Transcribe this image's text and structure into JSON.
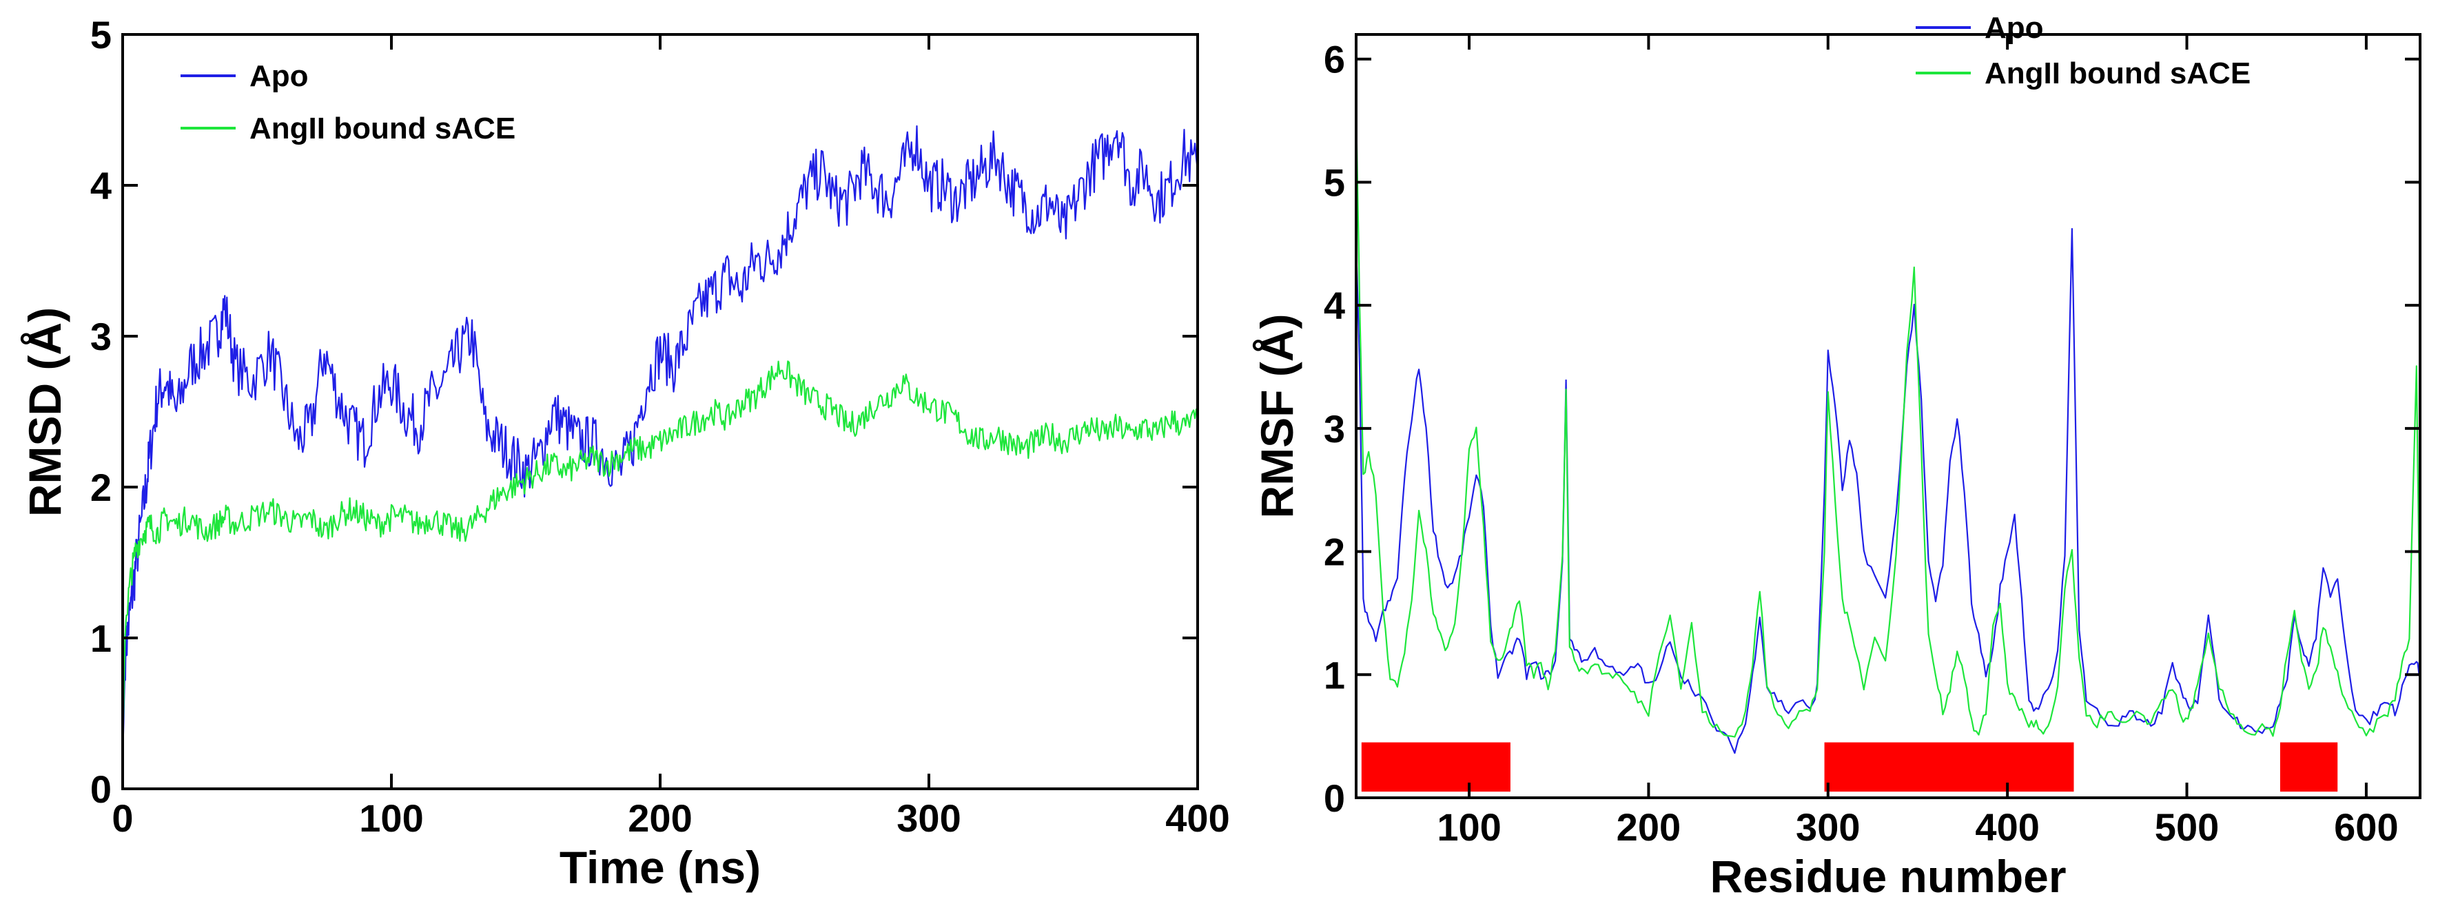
{
  "chart_data": [
    {
      "type": "line",
      "xlabel": "Time (ns)",
      "ylabel": "RMSD (Å)",
      "xlim": [
        0,
        400
      ],
      "ylim": [
        0,
        5
      ],
      "xticks": [
        "0",
        "100",
        "200",
        "300",
        "400"
      ],
      "yticks": [
        "0",
        "1",
        "2",
        "3",
        "4",
        "5"
      ],
      "legend_position": "top-left",
      "grid": false,
      "series": [
        {
          "name": "Apo",
          "color": "#1f1fe6",
          "x": [
            0,
            1,
            3,
            5,
            8,
            10,
            13,
            16,
            20,
            25,
            30,
            35,
            38,
            42,
            48,
            55,
            60,
            65,
            70,
            75,
            80,
            85,
            90,
            95,
            100,
            105,
            110,
            115,
            120,
            125,
            130,
            135,
            140,
            145,
            150,
            155,
            160,
            165,
            170,
            175,
            180,
            185,
            190,
            195,
            200,
            205,
            210,
            215,
            220,
            225,
            230,
            235,
            240,
            245,
            250,
            255,
            260,
            265,
            270,
            275,
            280,
            285,
            290,
            295,
            300,
            305,
            310,
            315,
            320,
            325,
            330,
            335,
            340,
            345,
            350,
            355,
            360,
            365,
            370,
            375,
            380,
            385,
            390,
            395,
            400
          ],
          "y": [
            0.2,
            0.9,
            1.2,
            1.5,
            1.9,
            2.2,
            2.6,
            2.7,
            2.5,
            2.8,
            2.9,
            3.0,
            3.2,
            2.8,
            2.7,
            2.9,
            2.6,
            2.3,
            2.4,
            2.9,
            2.6,
            2.4,
            2.3,
            2.6,
            2.7,
            2.5,
            2.4,
            2.6,
            2.7,
            2.9,
            3.0,
            2.4,
            2.3,
            2.2,
            2.1,
            2.2,
            2.5,
            2.4,
            2.3,
            2.3,
            2.2,
            2.1,
            2.3,
            2.7,
            2.9,
            2.8,
            3.0,
            3.2,
            3.3,
            3.4,
            3.3,
            3.5,
            3.5,
            3.6,
            3.8,
            4.0,
            4.1,
            3.9,
            3.9,
            4.1,
            4.0,
            3.9,
            4.1,
            4.3,
            4.0,
            4.0,
            3.9,
            4.0,
            4.1,
            4.2,
            4.0,
            3.9,
            3.8,
            3.9,
            3.7,
            3.9,
            4.1,
            4.2,
            4.4,
            4.0,
            4.1,
            3.9,
            4.0,
            4.2,
            4.1
          ]
        },
        {
          "name": "AngII bound sACE",
          "color": "#1ee63c",
          "x": [
            0,
            1,
            3,
            5,
            8,
            10,
            13,
            16,
            20,
            25,
            30,
            35,
            38,
            42,
            48,
            55,
            60,
            65,
            70,
            75,
            80,
            85,
            90,
            95,
            100,
            105,
            110,
            115,
            120,
            125,
            130,
            135,
            140,
            145,
            150,
            155,
            160,
            165,
            170,
            175,
            180,
            185,
            190,
            195,
            200,
            205,
            210,
            215,
            220,
            225,
            230,
            235,
            240,
            245,
            250,
            255,
            260,
            265,
            270,
            275,
            280,
            285,
            290,
            295,
            300,
            305,
            310,
            315,
            320,
            325,
            330,
            335,
            340,
            345,
            350,
            355,
            360,
            365,
            370,
            375,
            380,
            385,
            390,
            395,
            400
          ],
          "y": [
            0.25,
            1.1,
            1.4,
            1.6,
            1.7,
            1.75,
            1.7,
            1.8,
            1.75,
            1.8,
            1.7,
            1.75,
            1.8,
            1.75,
            1.8,
            1.85,
            1.8,
            1.75,
            1.8,
            1.7,
            1.8,
            1.85,
            1.8,
            1.75,
            1.8,
            1.8,
            1.75,
            1.8,
            1.75,
            1.7,
            1.75,
            1.85,
            1.95,
            2.0,
            2.05,
            2.1,
            2.15,
            2.1,
            2.15,
            2.2,
            2.15,
            2.2,
            2.25,
            2.25,
            2.3,
            2.35,
            2.4,
            2.45,
            2.5,
            2.45,
            2.55,
            2.6,
            2.7,
            2.8,
            2.7,
            2.6,
            2.55,
            2.5,
            2.4,
            2.45,
            2.55,
            2.6,
            2.7,
            2.6,
            2.55,
            2.5,
            2.45,
            2.35,
            2.3,
            2.35,
            2.3,
            2.25,
            2.3,
            2.35,
            2.3,
            2.35,
            2.4,
            2.35,
            2.4,
            2.35,
            2.4,
            2.35,
            2.45,
            2.4,
            2.45
          ]
        }
      ]
    },
    {
      "type": "line",
      "xlabel": "Residue number",
      "ylabel": "RMSF (Å)",
      "xlim": [
        37,
        630
      ],
      "ylim": [
        0,
        6.2
      ],
      "xticks": [
        "100",
        "200",
        "300",
        "400",
        "500",
        "600"
      ],
      "yticks": [
        "0",
        "1",
        "2",
        "3",
        "4",
        "5",
        "6"
      ],
      "legend_position": "top-center",
      "grid": false,
      "domain_bars": [
        {
          "start": 40,
          "end": 123,
          "color": "#ff0000"
        },
        {
          "start": 298,
          "end": 437,
          "color": "#ff0000"
        },
        {
          "start": 552,
          "end": 584,
          "color": "#ff0000"
        }
      ],
      "series": [
        {
          "name": "Apo",
          "color": "#1f1fe6",
          "x": [
            37,
            39,
            41,
            44,
            48,
            52,
            56,
            60,
            64,
            68,
            72,
            76,
            80,
            84,
            88,
            92,
            96,
            100,
            104,
            108,
            112,
            116,
            120,
            124,
            128,
            132,
            136,
            140,
            144,
            148,
            152,
            154,
            156,
            160,
            164,
            170,
            176,
            182,
            188,
            194,
            200,
            206,
            212,
            218,
            224,
            230,
            236,
            242,
            248,
            254,
            258,
            262,
            266,
            272,
            278,
            284,
            290,
            294,
            298,
            300,
            304,
            308,
            312,
            316,
            320,
            326,
            332,
            338,
            344,
            348,
            352,
            356,
            360,
            364,
            368,
            372,
            376,
            380,
            384,
            388,
            392,
            396,
            400,
            404,
            408,
            412,
            416,
            420,
            424,
            428,
            432,
            436,
            440,
            444,
            450,
            456,
            462,
            468,
            474,
            480,
            486,
            492,
            498,
            502,
            506,
            512,
            518,
            524,
            530,
            536,
            542,
            548,
            552,
            556,
            560,
            564,
            568,
            572,
            576,
            580,
            584,
            588,
            594,
            600,
            606,
            612,
            616,
            620,
            624,
            628,
            630
          ],
          "y": [
            4.5,
            3.5,
            1.6,
            1.4,
            1.3,
            1.5,
            1.6,
            1.8,
            2.6,
            3.1,
            3.5,
            3.0,
            2.2,
            1.9,
            1.7,
            1.8,
            2.0,
            2.3,
            2.6,
            2.4,
            1.4,
            1.0,
            1.1,
            1.2,
            1.3,
            1.0,
            1.1,
            1.0,
            1.0,
            1.1,
            1.9,
            3.4,
            1.3,
            1.2,
            1.1,
            1.2,
            1.1,
            1.0,
            1.0,
            1.1,
            0.9,
            1.0,
            1.3,
            1.0,
            0.9,
            0.8,
            0.6,
            0.5,
            0.4,
            0.6,
            1.0,
            1.5,
            0.9,
            0.8,
            0.7,
            0.8,
            0.7,
            0.9,
            2.5,
            3.6,
            3.2,
            2.5,
            2.9,
            2.6,
            2.0,
            1.8,
            1.6,
            2.3,
            3.5,
            4.0,
            3.2,
            1.9,
            1.6,
            1.9,
            2.7,
            3.1,
            2.5,
            1.6,
            1.3,
            1.0,
            1.2,
            1.7,
            2.0,
            2.3,
            1.6,
            0.8,
            0.7,
            0.8,
            0.9,
            1.2,
            2.0,
            4.6,
            1.4,
            0.8,
            0.7,
            0.6,
            0.6,
            0.7,
            0.6,
            0.6,
            0.7,
            1.1,
            0.8,
            0.7,
            0.8,
            1.5,
            0.8,
            0.7,
            0.6,
            0.6,
            0.5,
            0.6,
            0.8,
            1.0,
            1.5,
            1.2,
            1.1,
            1.3,
            1.9,
            1.6,
            1.8,
            1.3,
            0.7,
            0.6,
            0.7,
            0.8,
            0.7,
            0.9,
            1.1,
            1.1,
            1.0
          ],
          "name_dup_guard": ""
        },
        {
          "name": "AngII bound sACE",
          "color": "#1ee63c",
          "x": [
            37,
            39,
            41,
            44,
            48,
            52,
            56,
            60,
            64,
            68,
            72,
            76,
            80,
            84,
            88,
            92,
            96,
            100,
            104,
            108,
            112,
            116,
            120,
            124,
            128,
            132,
            136,
            140,
            144,
            148,
            152,
            154,
            156,
            160,
            164,
            170,
            176,
            182,
            188,
            194,
            200,
            206,
            212,
            218,
            224,
            230,
            236,
            242,
            248,
            254,
            258,
            262,
            266,
            272,
            278,
            284,
            290,
            294,
            298,
            300,
            304,
            308,
            312,
            316,
            320,
            326,
            332,
            338,
            344,
            348,
            352,
            356,
            360,
            364,
            368,
            372,
            376,
            380,
            384,
            388,
            392,
            396,
            400,
            404,
            408,
            412,
            416,
            420,
            424,
            428,
            432,
            436,
            440,
            444,
            450,
            456,
            462,
            468,
            474,
            480,
            486,
            492,
            498,
            502,
            506,
            512,
            518,
            524,
            530,
            536,
            542,
            548,
            552,
            556,
            560,
            564,
            568,
            572,
            576,
            580,
            584,
            588,
            594,
            600,
            606,
            612,
            616,
            620,
            624,
            628,
            630
          ],
          "y": [
            5.6,
            4.0,
            2.6,
            2.8,
            2.5,
            1.5,
            1.0,
            0.9,
            1.2,
            1.6,
            2.3,
            2.0,
            1.5,
            1.3,
            1.2,
            1.4,
            2.0,
            2.8,
            3.0,
            2.2,
            1.3,
            1.1,
            1.2,
            1.4,
            1.6,
            1.1,
            1.0,
            1.1,
            0.9,
            1.2,
            2.0,
            3.3,
            1.2,
            1.1,
            1.0,
            1.1,
            1.0,
            1.0,
            0.9,
            0.8,
            0.7,
            1.2,
            1.5,
            0.9,
            1.4,
            0.7,
            0.6,
            0.5,
            0.5,
            0.7,
            1.1,
            1.7,
            0.9,
            0.7,
            0.6,
            0.7,
            0.7,
            0.9,
            2.0,
            3.3,
            2.4,
            1.6,
            1.4,
            1.2,
            0.9,
            1.3,
            1.1,
            2.0,
            3.6,
            4.3,
            2.8,
            1.3,
            1.0,
            0.7,
            0.9,
            1.2,
            1.0,
            0.6,
            0.5,
            0.7,
            1.4,
            1.6,
            0.9,
            0.8,
            0.7,
            0.6,
            0.6,
            0.5,
            0.6,
            0.9,
            1.7,
            2.0,
            1.1,
            0.7,
            0.6,
            0.7,
            0.6,
            0.6,
            0.7,
            0.6,
            0.8,
            0.9,
            0.6,
            0.7,
            0.9,
            1.3,
            0.9,
            0.7,
            0.6,
            0.5,
            0.6,
            0.5,
            0.7,
            1.2,
            1.5,
            1.1,
            0.9,
            1.0,
            1.4,
            1.2,
            1.0,
            0.8,
            0.6,
            0.5,
            0.6,
            0.7,
            0.8,
            1.1,
            1.3,
            3.5,
            1.2
          ]
        }
      ]
    }
  ]
}
